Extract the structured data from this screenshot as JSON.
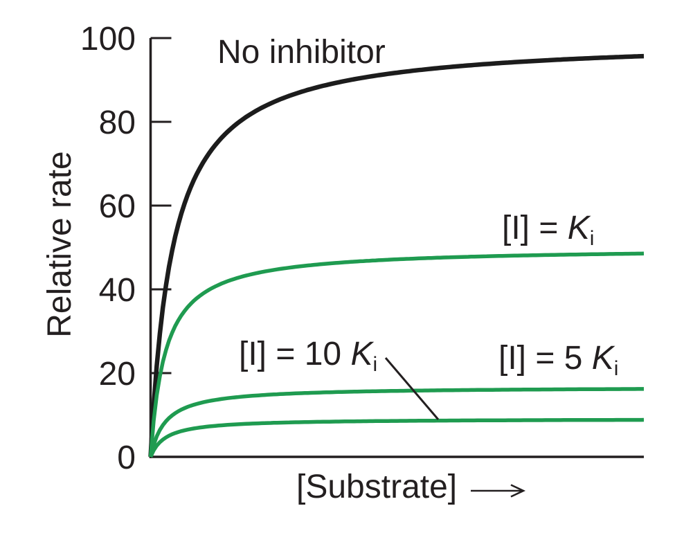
{
  "chart_data": {
    "type": "line",
    "title": "",
    "xlabel": "[Substrate]",
    "x_axis_arrow": "arrow pointing right, increasing substrate concentration (no numeric x ticks)",
    "ylabel": "Relative rate",
    "ylim": [
      0,
      100
    ],
    "yticks": [
      0,
      20,
      40,
      60,
      80,
      100
    ],
    "x_tick_labels": [],
    "grid": false,
    "legend_position": "inline labels next to curves",
    "model_note": "Michaelis-Menten saturation curves v = Vmax_app*s/(Km+s), s = substrate fraction 0-1 of plot width; noncompetitive inhibition lowers apparent Vmax",
    "series": [
      {
        "name": "no-inhibitor",
        "label": "No inhibitor",
        "color": "#1c1c1c",
        "vmax_app": 100,
        "km_normalized": 0.045,
        "value_at_right_edge": 95.7
      },
      {
        "name": "I-equals-Ki",
        "label": "[I] = Ki",
        "color": "#1f9b50",
        "vmax_app": 50,
        "km_normalized": 0.03,
        "value_at_right_edge": 48.5
      },
      {
        "name": "I-equals-5Ki",
        "label": "[I] = 5 Ki",
        "color": "#1f9b50",
        "vmax_app": 16.7,
        "km_normalized": 0.03,
        "value_at_right_edge": 16.2
      },
      {
        "name": "I-equals-10Ki",
        "label": "[I] = 10 Ki",
        "color": "#1f9b50",
        "vmax_app": 9.1,
        "km_normalized": 0.03,
        "value_at_right_edge": 8.8
      }
    ],
    "annotations": [
      {
        "type": "leader-line",
        "from_label": "[I] = 10 Ki",
        "to_series": "I-equals-10Ki"
      }
    ]
  },
  "labels": {
    "no_inhibitor": "No inhibitor",
    "ki": {
      "prefix": "[I] = ",
      "k": "K",
      "sub": "i"
    },
    "ki10": {
      "prefix": "[I] = 10 ",
      "k": "K",
      "sub": "i"
    },
    "ki5": {
      "prefix": "[I] = 5 ",
      "k": "K",
      "sub": "i"
    },
    "ylabel": "Relative rate",
    "xlabel": "[Substrate]"
  },
  "colors": {
    "ink": "#231f20",
    "curve_black": "#1c1c1c",
    "inhibitor_green": "#1f9b50",
    "background": "#ffffff"
  }
}
